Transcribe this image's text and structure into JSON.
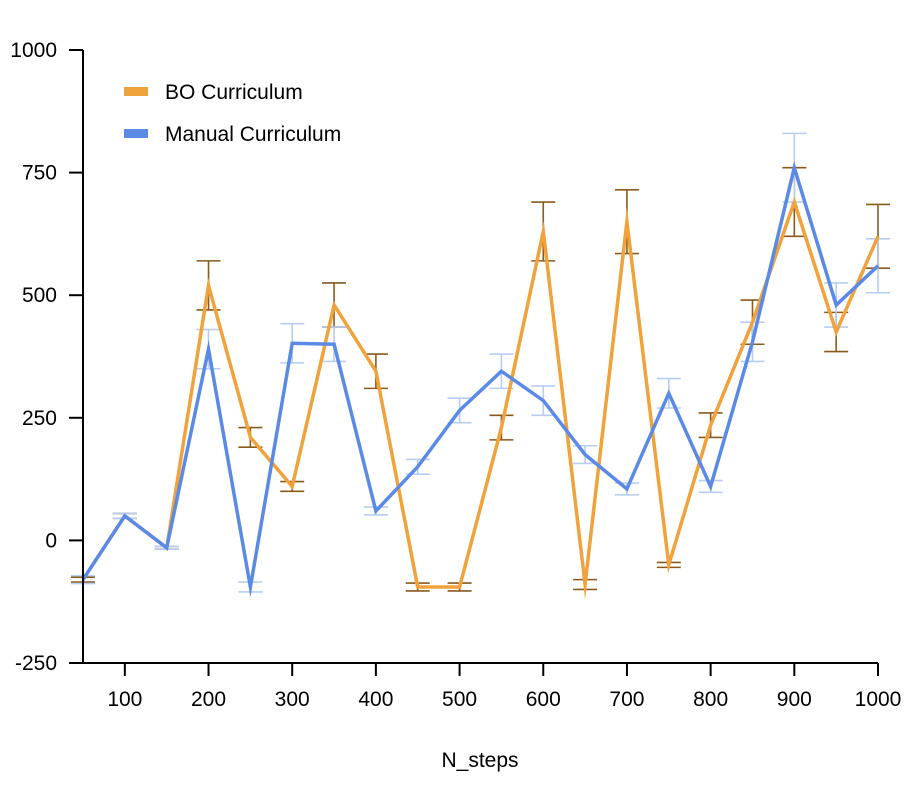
{
  "chart_data": {
    "type": "line",
    "title": "",
    "xlabel": "N_steps",
    "ylabel": "",
    "xlim": [
      50,
      1000
    ],
    "ylim": [
      -250,
      1000
    ],
    "x_ticks": [
      100,
      200,
      300,
      400,
      500,
      600,
      700,
      800,
      900,
      1000
    ],
    "x_tick_labels": [
      "100",
      "200",
      "300",
      "400",
      "500",
      "600",
      "700",
      "800",
      "900",
      "1000"
    ],
    "y_ticks": [
      -250,
      0,
      250,
      500,
      750,
      1000
    ],
    "y_tick_labels": [
      "-250",
      "0",
      "250",
      "500",
      "750",
      "1000"
    ],
    "grid": false,
    "legend_position": "top-left",
    "x": [
      50,
      100,
      150,
      200,
      250,
      300,
      350,
      400,
      450,
      500,
      550,
      600,
      650,
      700,
      750,
      800,
      850,
      900,
      950,
      1000
    ],
    "series": [
      {
        "name": "BO Curriculum",
        "color": "#f0a23c",
        "error_color": "#8a5a1c",
        "values": [
          -80,
          50,
          -15,
          520,
          210,
          110,
          480,
          345,
          -95,
          -95,
          230,
          630,
          -90,
          650,
          -50,
          235,
          445,
          690,
          425,
          620
        ],
        "errors": [
          5,
          5,
          3,
          50,
          20,
          10,
          45,
          35,
          8,
          8,
          25,
          60,
          10,
          65,
          5,
          25,
          45,
          70,
          40,
          65
        ]
      },
      {
        "name": "Manual Curriculum",
        "color": "#5b8ae6",
        "error_color": "#b7cdf2",
        "values": [
          -80,
          50,
          -15,
          390,
          -95,
          402,
          400,
          60,
          150,
          265,
          345,
          285,
          175,
          105,
          300,
          110,
          405,
          760,
          480,
          560
        ],
        "errors": [
          8,
          5,
          3,
          40,
          10,
          40,
          35,
          8,
          15,
          25,
          35,
          30,
          18,
          12,
          30,
          12,
          40,
          70,
          45,
          55
        ]
      }
    ]
  }
}
